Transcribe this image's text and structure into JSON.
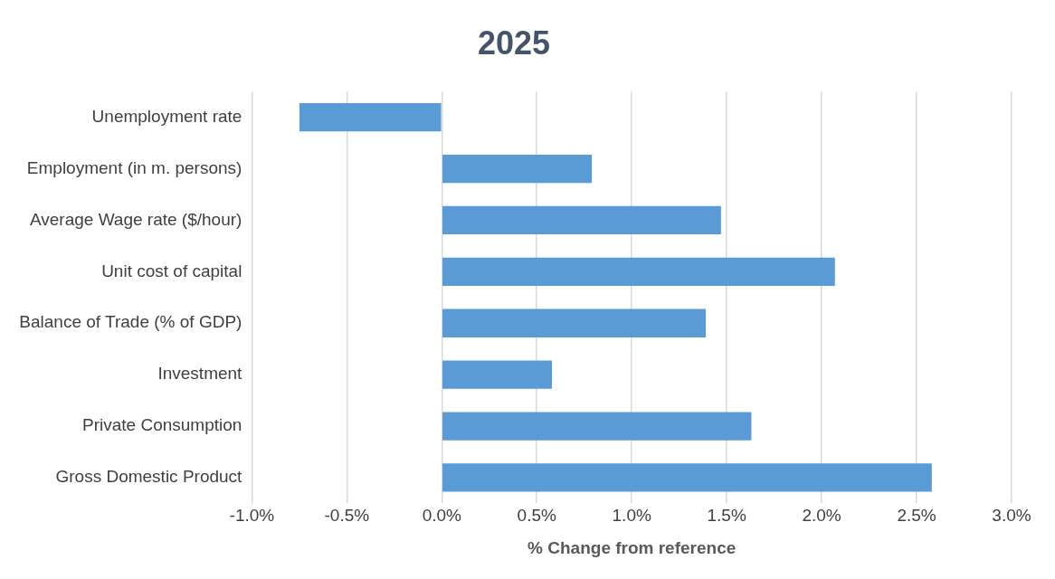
{
  "chart_data": {
    "type": "bar",
    "orientation": "horizontal",
    "title": "2025",
    "xlabel": "% Change from reference",
    "categories": [
      "Unemployment rate",
      "Employment (in m. persons)",
      "Average Wage rate ($/hour)",
      "Unit cost of capital",
      "Balance of Trade (% of GDP)",
      "Investment",
      "Private Consumption",
      "Gross Domestic Product"
    ],
    "values": [
      -0.75,
      0.79,
      1.47,
      2.07,
      1.39,
      0.58,
      1.63,
      2.58
    ],
    "color": "#5b9bd5",
    "xlim": [
      -1,
      3
    ],
    "xticks": [
      {
        "value": -1,
        "label": "-1.0%"
      },
      {
        "value": -0.5,
        "label": "-0.5%"
      },
      {
        "value": 0,
        "label": "0.0%"
      },
      {
        "value": 0.5,
        "label": "0.5%"
      },
      {
        "value": 1,
        "label": "1.0%"
      },
      {
        "value": 1.5,
        "label": "1.5%"
      },
      {
        "value": 2,
        "label": "2.0%"
      },
      {
        "value": 2.5,
        "label": "2.5%"
      },
      {
        "value": 3,
        "label": "3.0%"
      }
    ],
    "grid": "x",
    "legend": false
  }
}
